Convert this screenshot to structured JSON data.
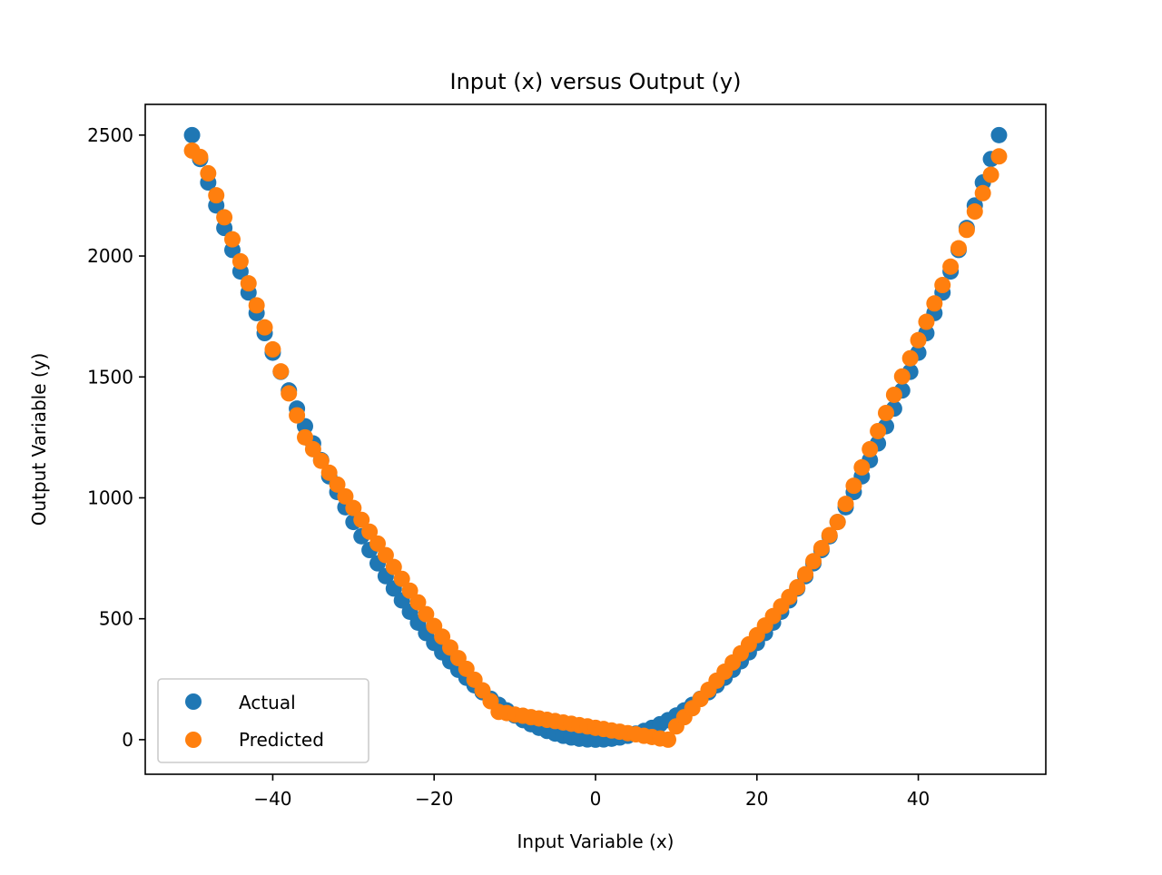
{
  "chart_data": {
    "type": "scatter",
    "title": "Input (x) versus Output (y)",
    "xlabel": "Input Variable (x)",
    "ylabel": "Output Variable (y)",
    "xlim": [
      -55.8,
      55.8
    ],
    "ylim": [
      -143,
      2627
    ],
    "xticks": [
      -40,
      -20,
      0,
      20,
      40
    ],
    "xtick_labels": [
      "−40",
      "−20",
      "0",
      "20",
      "40"
    ],
    "yticks": [
      0,
      500,
      1000,
      1500,
      2000,
      2500
    ],
    "ytick_labels": [
      "0",
      "500",
      "1000",
      "1500",
      "2000",
      "2500"
    ],
    "grid": false,
    "legend_position": "lower-left",
    "x": [
      -50,
      -49,
      -48,
      -47,
      -46,
      -45,
      -44,
      -43,
      -42,
      -41,
      -40,
      -39,
      -38,
      -37,
      -36,
      -35,
      -34,
      -33,
      -32,
      -31,
      -30,
      -29,
      -28,
      -27,
      -26,
      -25,
      -24,
      -23,
      -22,
      -21,
      -20,
      -19,
      -18,
      -17,
      -16,
      -15,
      -14,
      -13,
      -12,
      -11,
      -10,
      -9,
      -8,
      -7,
      -6,
      -5,
      -4,
      -3,
      -2,
      -1,
      0,
      1,
      2,
      3,
      4,
      5,
      6,
      7,
      8,
      9,
      10,
      11,
      12,
      13,
      14,
      15,
      16,
      17,
      18,
      19,
      20,
      21,
      22,
      23,
      24,
      25,
      26,
      27,
      28,
      29,
      30,
      31,
      32,
      33,
      34,
      35,
      36,
      37,
      38,
      39,
      40,
      41,
      42,
      43,
      44,
      45,
      46,
      47,
      48,
      49,
      50
    ],
    "series": [
      {
        "name": "Actual",
        "color": "#1f77b4",
        "values": [
          2500,
          2401,
          2304,
          2209,
          2116,
          2025,
          1936,
          1849,
          1764,
          1681,
          1600,
          1521,
          1444,
          1369,
          1296,
          1225,
          1156,
          1089,
          1024,
          961,
          900,
          841,
          784,
          729,
          676,
          625,
          576,
          529,
          484,
          441,
          400,
          361,
          324,
          289,
          256,
          225,
          196,
          169,
          144,
          121,
          100,
          81,
          64,
          49,
          36,
          25,
          16,
          9,
          4,
          1,
          0,
          1,
          4,
          9,
          16,
          25,
          36,
          49,
          64,
          81,
          100,
          121,
          144,
          169,
          196,
          225,
          256,
          289,
          324,
          361,
          400,
          441,
          484,
          529,
          576,
          625,
          676,
          729,
          784,
          841,
          900,
          961,
          1024,
          1089,
          1156,
          1225,
          1296,
          1369,
          1444,
          1521,
          1600,
          1681,
          1764,
          1849,
          1936,
          2025,
          2116,
          2209,
          2304,
          2401,
          2500
        ]
      },
      {
        "name": "Predicted",
        "color": "#ff7f0e",
        "values": [
          2436,
          2410,
          2342,
          2251,
          2160,
          2069,
          1978,
          1887,
          1796,
          1705,
          1614,
          1523,
          1432,
          1341,
          1250,
          1201,
          1153,
          1104,
          1055,
          1006,
          958,
          909,
          860,
          811,
          763,
          714,
          665,
          616,
          568,
          519,
          470,
          426,
          381,
          337,
          293,
          248,
          204,
          159,
          115,
          110,
          104,
          99,
          93,
          88,
          82,
          77,
          71,
          66,
          60,
          55,
          49,
          44,
          38,
          33,
          27,
          22,
          16,
          11,
          5,
          0,
          55,
          93,
          130,
          168,
          206,
          244,
          281,
          319,
          357,
          394,
          432,
          472,
          511,
          551,
          590,
          630,
          684,
          738,
          792,
          846,
          900,
          975,
          1050,
          1126,
          1201,
          1276,
          1351,
          1426,
          1502,
          1577,
          1652,
          1728,
          1804,
          1880,
          1956,
          2032,
          2108,
          2184,
          2260,
          2336,
          2412
        ]
      }
    ]
  }
}
